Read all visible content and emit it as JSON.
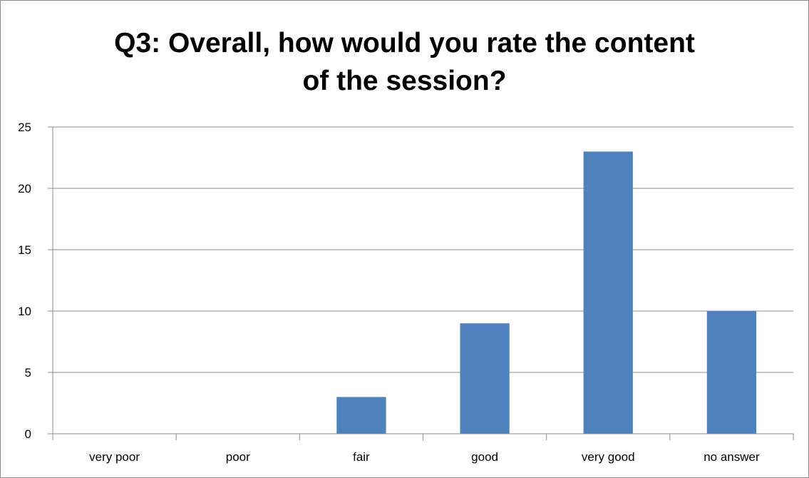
{
  "chart_data": {
    "type": "bar",
    "title_lines": [
      "Q3: Overall, how would you rate the content",
      "of the session?"
    ],
    "categories": [
      "very poor",
      "poor",
      "fair",
      "good",
      "very good",
      "no answer"
    ],
    "values": [
      0,
      0,
      3,
      9,
      23,
      10
    ],
    "ylim": [
      0,
      25
    ],
    "yticks": [
      0,
      5,
      10,
      15,
      20,
      25
    ],
    "grid": true,
    "legend": "none",
    "bar_color": "#4f81bd",
    "grid_color": "#8c8c8c"
  }
}
